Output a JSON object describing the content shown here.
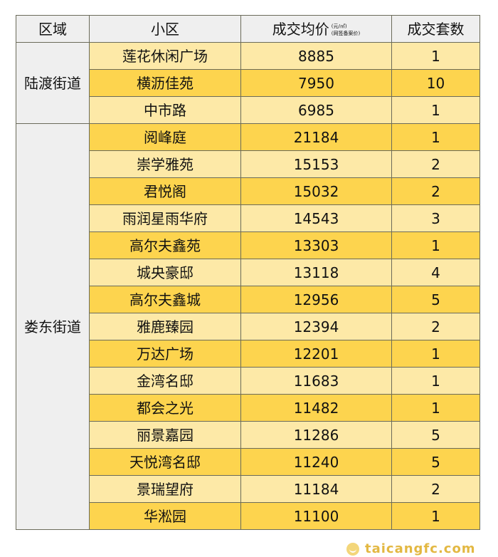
{
  "header": {
    "region": "区域",
    "community": "小区",
    "price": "成交均价",
    "price_unit": "(元/㎡)",
    "price_note": "(网签备案价)",
    "count": "成交套数"
  },
  "groups": [
    {
      "region": "陆渡街道",
      "rows": [
        {
          "name": "莲花休闲广场",
          "price": "8885",
          "count": "1"
        },
        {
          "name": "横沥佳苑",
          "price": "7950",
          "count": "10"
        },
        {
          "name": "中市路",
          "price": "6985",
          "count": "1"
        }
      ]
    },
    {
      "region": "娄东街道",
      "rows": [
        {
          "name": "阅峰庭",
          "price": "21184",
          "count": "1"
        },
        {
          "name": "崇学雅苑",
          "price": "15153",
          "count": "2"
        },
        {
          "name": "君悦阁",
          "price": "15032",
          "count": "2"
        },
        {
          "name": "雨润星雨华府",
          "price": "14543",
          "count": "3"
        },
        {
          "name": "高尔夫鑫苑",
          "price": "13303",
          "count": "1"
        },
        {
          "name": "城央豪邸",
          "price": "13118",
          "count": "4"
        },
        {
          "name": "高尔夫鑫城",
          "price": "12956",
          "count": "5"
        },
        {
          "name": "雅鹿臻园",
          "price": "12394",
          "count": "2"
        },
        {
          "name": "万达广场",
          "price": "12201",
          "count": "1"
        },
        {
          "name": "金湾名邸",
          "price": "11683",
          "count": "1"
        },
        {
          "name": "都会之光",
          "price": "11482",
          "count": "1"
        },
        {
          "name": "丽景嘉园",
          "price": "11286",
          "count": "5"
        },
        {
          "name": "天悦湾名邸",
          "price": "11240",
          "count": "5"
        },
        {
          "name": "景瑞望府",
          "price": "11184",
          "count": "2"
        },
        {
          "name": "华淞园",
          "price": "11100",
          "count": "1"
        }
      ]
    }
  ],
  "colors": {
    "row_light": "#fde9a7",
    "row_dark": "#fdd44e",
    "header": "#efefef"
  },
  "watermark": "taicangfc.com"
}
